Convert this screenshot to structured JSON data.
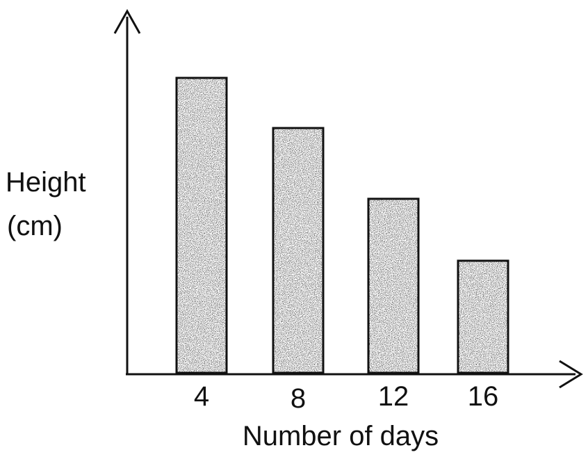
{
  "chart_data": {
    "type": "bar",
    "title": "",
    "xlabel": "Number of days",
    "ylabel_lines": [
      "Height",
      "(cm)"
    ],
    "categories": [
      "4",
      "8",
      "12",
      "16"
    ],
    "values": [
      10,
      8.3,
      5.9,
      3.8
    ],
    "y_ticks_shown": false,
    "grid": false,
    "legend": "none",
    "colors": {
      "bar_fill": "#3a3a3a",
      "bar_stroke": "#111111",
      "axis": "#111111"
    }
  }
}
